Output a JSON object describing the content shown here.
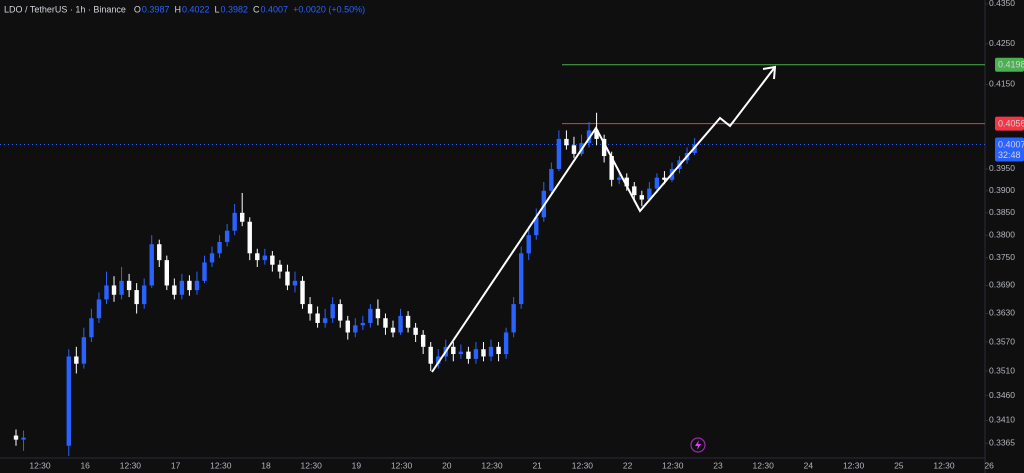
{
  "chart_data": {
    "type": "candlestick",
    "symbol": "LDO / TetherUS · 1h · Binance",
    "ohlc_header": [
      {
        "key": "O",
        "value": "0.3987"
      },
      {
        "key": "H",
        "value": "0.4022"
      },
      {
        "key": "L",
        "value": "0.3982"
      },
      {
        "key": "C",
        "value": "0.4007"
      }
    ],
    "change": "+0.0020 (+0.50%)",
    "up_color": "#2962ff",
    "down_color": "#ffffff",
    "log_scale": true,
    "ylim": [
      0.3336,
      0.436
    ],
    "yticks": [
      {
        "value": 0.435,
        "label": "0.4350"
      },
      {
        "value": 0.425,
        "label": "0.4250"
      },
      {
        "value": 0.415,
        "label": "0.4150"
      },
      {
        "value": 0.395,
        "label": "0.3950"
      },
      {
        "value": 0.39,
        "label": "0.3900"
      },
      {
        "value": 0.385,
        "label": "0.3850"
      },
      {
        "value": 0.38,
        "label": "0.3800"
      },
      {
        "value": 0.375,
        "label": "0.3750"
      },
      {
        "value": 0.369,
        "label": "0.3690"
      },
      {
        "value": 0.363,
        "label": "0.3630"
      },
      {
        "value": 0.357,
        "label": "0.3570"
      },
      {
        "value": 0.351,
        "label": "0.3510"
      },
      {
        "value": 0.346,
        "label": "0.3460"
      },
      {
        "value": 0.341,
        "label": "0.3410"
      },
      {
        "value": 0.3365,
        "label": "0.3365"
      }
    ],
    "x_labels": [
      "12:30",
      "16",
      "12:30",
      "17",
      "12:30",
      "18",
      "12:30",
      "19",
      "12:30",
      "20",
      "12:30",
      "21",
      "12:30",
      "22",
      "12:30",
      "23",
      "12:30",
      "24",
      "12:30",
      "25",
      "12:30",
      "26"
    ],
    "levels": [
      {
        "value": 0.4198,
        "label": "0.4198",
        "color": "#4caf50"
      },
      {
        "value": 0.4056,
        "label": "0.4056",
        "color": "#f23645"
      }
    ],
    "current_price": {
      "value": 0.4007,
      "label": "0.4007",
      "countdown": "32:48",
      "color": "#2962ff"
    },
    "ohlc": [
      [
        0.338,
        0.3392,
        0.336,
        0.3372
      ],
      [
        0.3372,
        0.339,
        0.335,
        0.3376
      ],
      null,
      null,
      null,
      null,
      null,
      [
        0.336,
        0.3555,
        0.334,
        0.354
      ],
      [
        0.354,
        0.356,
        0.3505,
        0.3525
      ],
      [
        0.3525,
        0.36,
        0.3515,
        0.358
      ],
      [
        0.358,
        0.364,
        0.357,
        0.362
      ],
      [
        0.362,
        0.3675,
        0.361,
        0.366
      ],
      [
        0.366,
        0.372,
        0.365,
        0.369
      ],
      [
        0.369,
        0.371,
        0.3655,
        0.367
      ],
      [
        0.367,
        0.373,
        0.366,
        0.37
      ],
      [
        0.37,
        0.3715,
        0.3665,
        0.368
      ],
      [
        0.368,
        0.3695,
        0.363,
        0.365
      ],
      [
        0.365,
        0.3705,
        0.364,
        0.369
      ],
      [
        0.369,
        0.38,
        0.3685,
        0.378
      ],
      [
        0.378,
        0.379,
        0.373,
        0.3745
      ],
      [
        0.3745,
        0.3755,
        0.368,
        0.369
      ],
      [
        0.369,
        0.3705,
        0.366,
        0.367
      ],
      [
        0.367,
        0.3715,
        0.366,
        0.37
      ],
      [
        0.37,
        0.3712,
        0.3668,
        0.368
      ],
      [
        0.368,
        0.372,
        0.367,
        0.37
      ],
      [
        0.37,
        0.3755,
        0.3695,
        0.374
      ],
      [
        0.374,
        0.3775,
        0.373,
        0.376
      ],
      [
        0.376,
        0.38,
        0.375,
        0.3785
      ],
      [
        0.3785,
        0.3825,
        0.3775,
        0.381
      ],
      [
        0.381,
        0.387,
        0.38,
        0.385
      ],
      [
        0.385,
        0.3895,
        0.382,
        0.383
      ],
      [
        0.383,
        0.384,
        0.3745,
        0.376
      ],
      [
        0.376,
        0.377,
        0.373,
        0.3745
      ],
      [
        0.3745,
        0.377,
        0.3735,
        0.3755
      ],
      [
        0.3755,
        0.3765,
        0.372,
        0.3735
      ],
      [
        0.3735,
        0.3745,
        0.3705,
        0.372
      ],
      [
        0.372,
        0.3735,
        0.368,
        0.369
      ],
      [
        0.369,
        0.372,
        0.3675,
        0.37
      ],
      [
        0.37,
        0.371,
        0.364,
        0.365
      ],
      [
        0.365,
        0.3665,
        0.3615,
        0.363
      ],
      [
        0.363,
        0.3645,
        0.36,
        0.361
      ],
      [
        0.361,
        0.364,
        0.36,
        0.362
      ],
      [
        0.362,
        0.3665,
        0.361,
        0.365
      ],
      [
        0.365,
        0.366,
        0.36,
        0.3615
      ],
      [
        0.3615,
        0.3625,
        0.3575,
        0.359
      ],
      [
        0.359,
        0.362,
        0.358,
        0.3605
      ],
      [
        0.3605,
        0.3625,
        0.3595,
        0.361
      ],
      [
        0.361,
        0.365,
        0.36,
        0.364
      ],
      [
        0.364,
        0.366,
        0.3605,
        0.362
      ],
      [
        0.362,
        0.363,
        0.3585,
        0.36
      ],
      [
        0.36,
        0.3615,
        0.358,
        0.359
      ],
      [
        0.359,
        0.364,
        0.3585,
        0.3625
      ],
      [
        0.3625,
        0.3635,
        0.359,
        0.36
      ],
      [
        0.36,
        0.361,
        0.357,
        0.3585
      ],
      [
        0.3585,
        0.3595,
        0.3545,
        0.356
      ],
      [
        0.356,
        0.357,
        0.351,
        0.3525
      ],
      [
        0.3525,
        0.3555,
        0.3515,
        0.354
      ],
      [
        0.354,
        0.3575,
        0.353,
        0.356
      ],
      [
        0.356,
        0.357,
        0.353,
        0.3545
      ],
      [
        0.3545,
        0.3565,
        0.3535,
        0.355
      ],
      [
        0.355,
        0.356,
        0.3525,
        0.3535
      ],
      [
        0.3535,
        0.357,
        0.3525,
        0.3555
      ],
      [
        0.3555,
        0.357,
        0.353,
        0.354
      ],
      [
        0.354,
        0.3575,
        0.353,
        0.356
      ],
      [
        0.356,
        0.357,
        0.353,
        0.3545
      ],
      [
        0.3545,
        0.36,
        0.3535,
        0.359
      ],
      [
        0.359,
        0.3665,
        0.358,
        0.365
      ],
      [
        0.365,
        0.3775,
        0.364,
        0.376
      ],
      [
        0.376,
        0.382,
        0.3745,
        0.38
      ],
      [
        0.38,
        0.386,
        0.379,
        0.384
      ],
      [
        0.384,
        0.392,
        0.383,
        0.39
      ],
      [
        0.39,
        0.3965,
        0.389,
        0.395
      ],
      [
        0.395,
        0.404,
        0.3945,
        0.402
      ],
      [
        0.402,
        0.404,
        0.3995,
        0.4005
      ],
      [
        0.4005,
        0.4025,
        0.3975,
        0.3985
      ],
      [
        0.3985,
        0.403,
        0.398,
        0.401
      ],
      [
        0.401,
        0.406,
        0.4,
        0.404
      ],
      [
        0.404,
        0.4082,
        0.4005,
        0.402
      ],
      [
        0.402,
        0.403,
        0.3965,
        0.398
      ],
      [
        0.398,
        0.399,
        0.391,
        0.3925
      ],
      [
        0.3925,
        0.3945,
        0.3915,
        0.393
      ],
      [
        0.393,
        0.394,
        0.39,
        0.391
      ],
      [
        0.391,
        0.392,
        0.3875,
        0.389
      ],
      [
        0.389,
        0.39,
        0.3865,
        0.388
      ],
      [
        0.388,
        0.392,
        0.3875,
        0.3905
      ],
      [
        0.3905,
        0.394,
        0.3895,
        0.393
      ],
      [
        0.393,
        0.3945,
        0.3915,
        0.3925
      ],
      [
        0.3925,
        0.3965,
        0.392,
        0.395
      ],
      [
        0.395,
        0.398,
        0.394,
        0.397
      ],
      [
        0.397,
        0.4,
        0.3962,
        0.3987
      ],
      [
        0.3987,
        0.4022,
        0.3982,
        0.4007
      ]
    ]
  }
}
